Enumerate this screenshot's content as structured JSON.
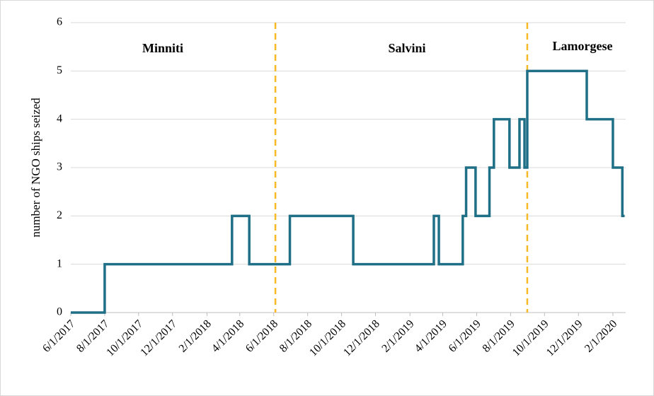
{
  "chart_data": {
    "type": "step",
    "y_label": "number of NGO ships seized",
    "annotations": [
      "Minniti",
      "Salvini",
      "Lamorgese"
    ],
    "x": [
      "6/1/2017",
      "8/1/2017",
      "3/18/2018",
      "4/18/2018",
      "6/30/2018",
      "10/22/2018",
      "3/16/2019",
      "3/25/2019",
      "5/7/2019",
      "5/13/2019",
      "5/30/2019",
      "6/24/2019",
      "7/2/2019",
      "7/30/2019",
      "8/17/2019",
      "8/26/2019",
      "8/31/2019",
      "12/16/2019",
      "2/1/2020",
      "2/18/2020",
      "2/22/2020"
    ],
    "values": [
      0,
      1,
      2,
      1,
      2,
      1,
      2,
      1,
      2,
      3,
      2,
      3,
      4,
      3,
      4,
      3,
      5,
      4,
      3,
      2,
      2
    ],
    "color": "#1f6f86",
    "vlines": [
      "6/4/2018",
      "8/31/2019"
    ],
    "vline_color": "#f7b924",
    "xlim": [
      "6/1/2017",
      "2/24/2020"
    ],
    "xticks": [
      "6/1/2017",
      "8/1/2017",
      "10/1/2017",
      "12/1/2017",
      "2/1/2018",
      "4/1/2018",
      "6/1/2018",
      "8/1/2018",
      "10/1/2018",
      "12/1/2018",
      "2/1/2019",
      "4/1/2019",
      "6/1/2019",
      "8/1/2019",
      "10/1/2019",
      "12/1/2019",
      "2/1/2020"
    ],
    "ylim": [
      0,
      6
    ],
    "yticks": [
      0,
      1,
      2,
      3,
      4,
      5,
      6
    ],
    "grid": true
  }
}
